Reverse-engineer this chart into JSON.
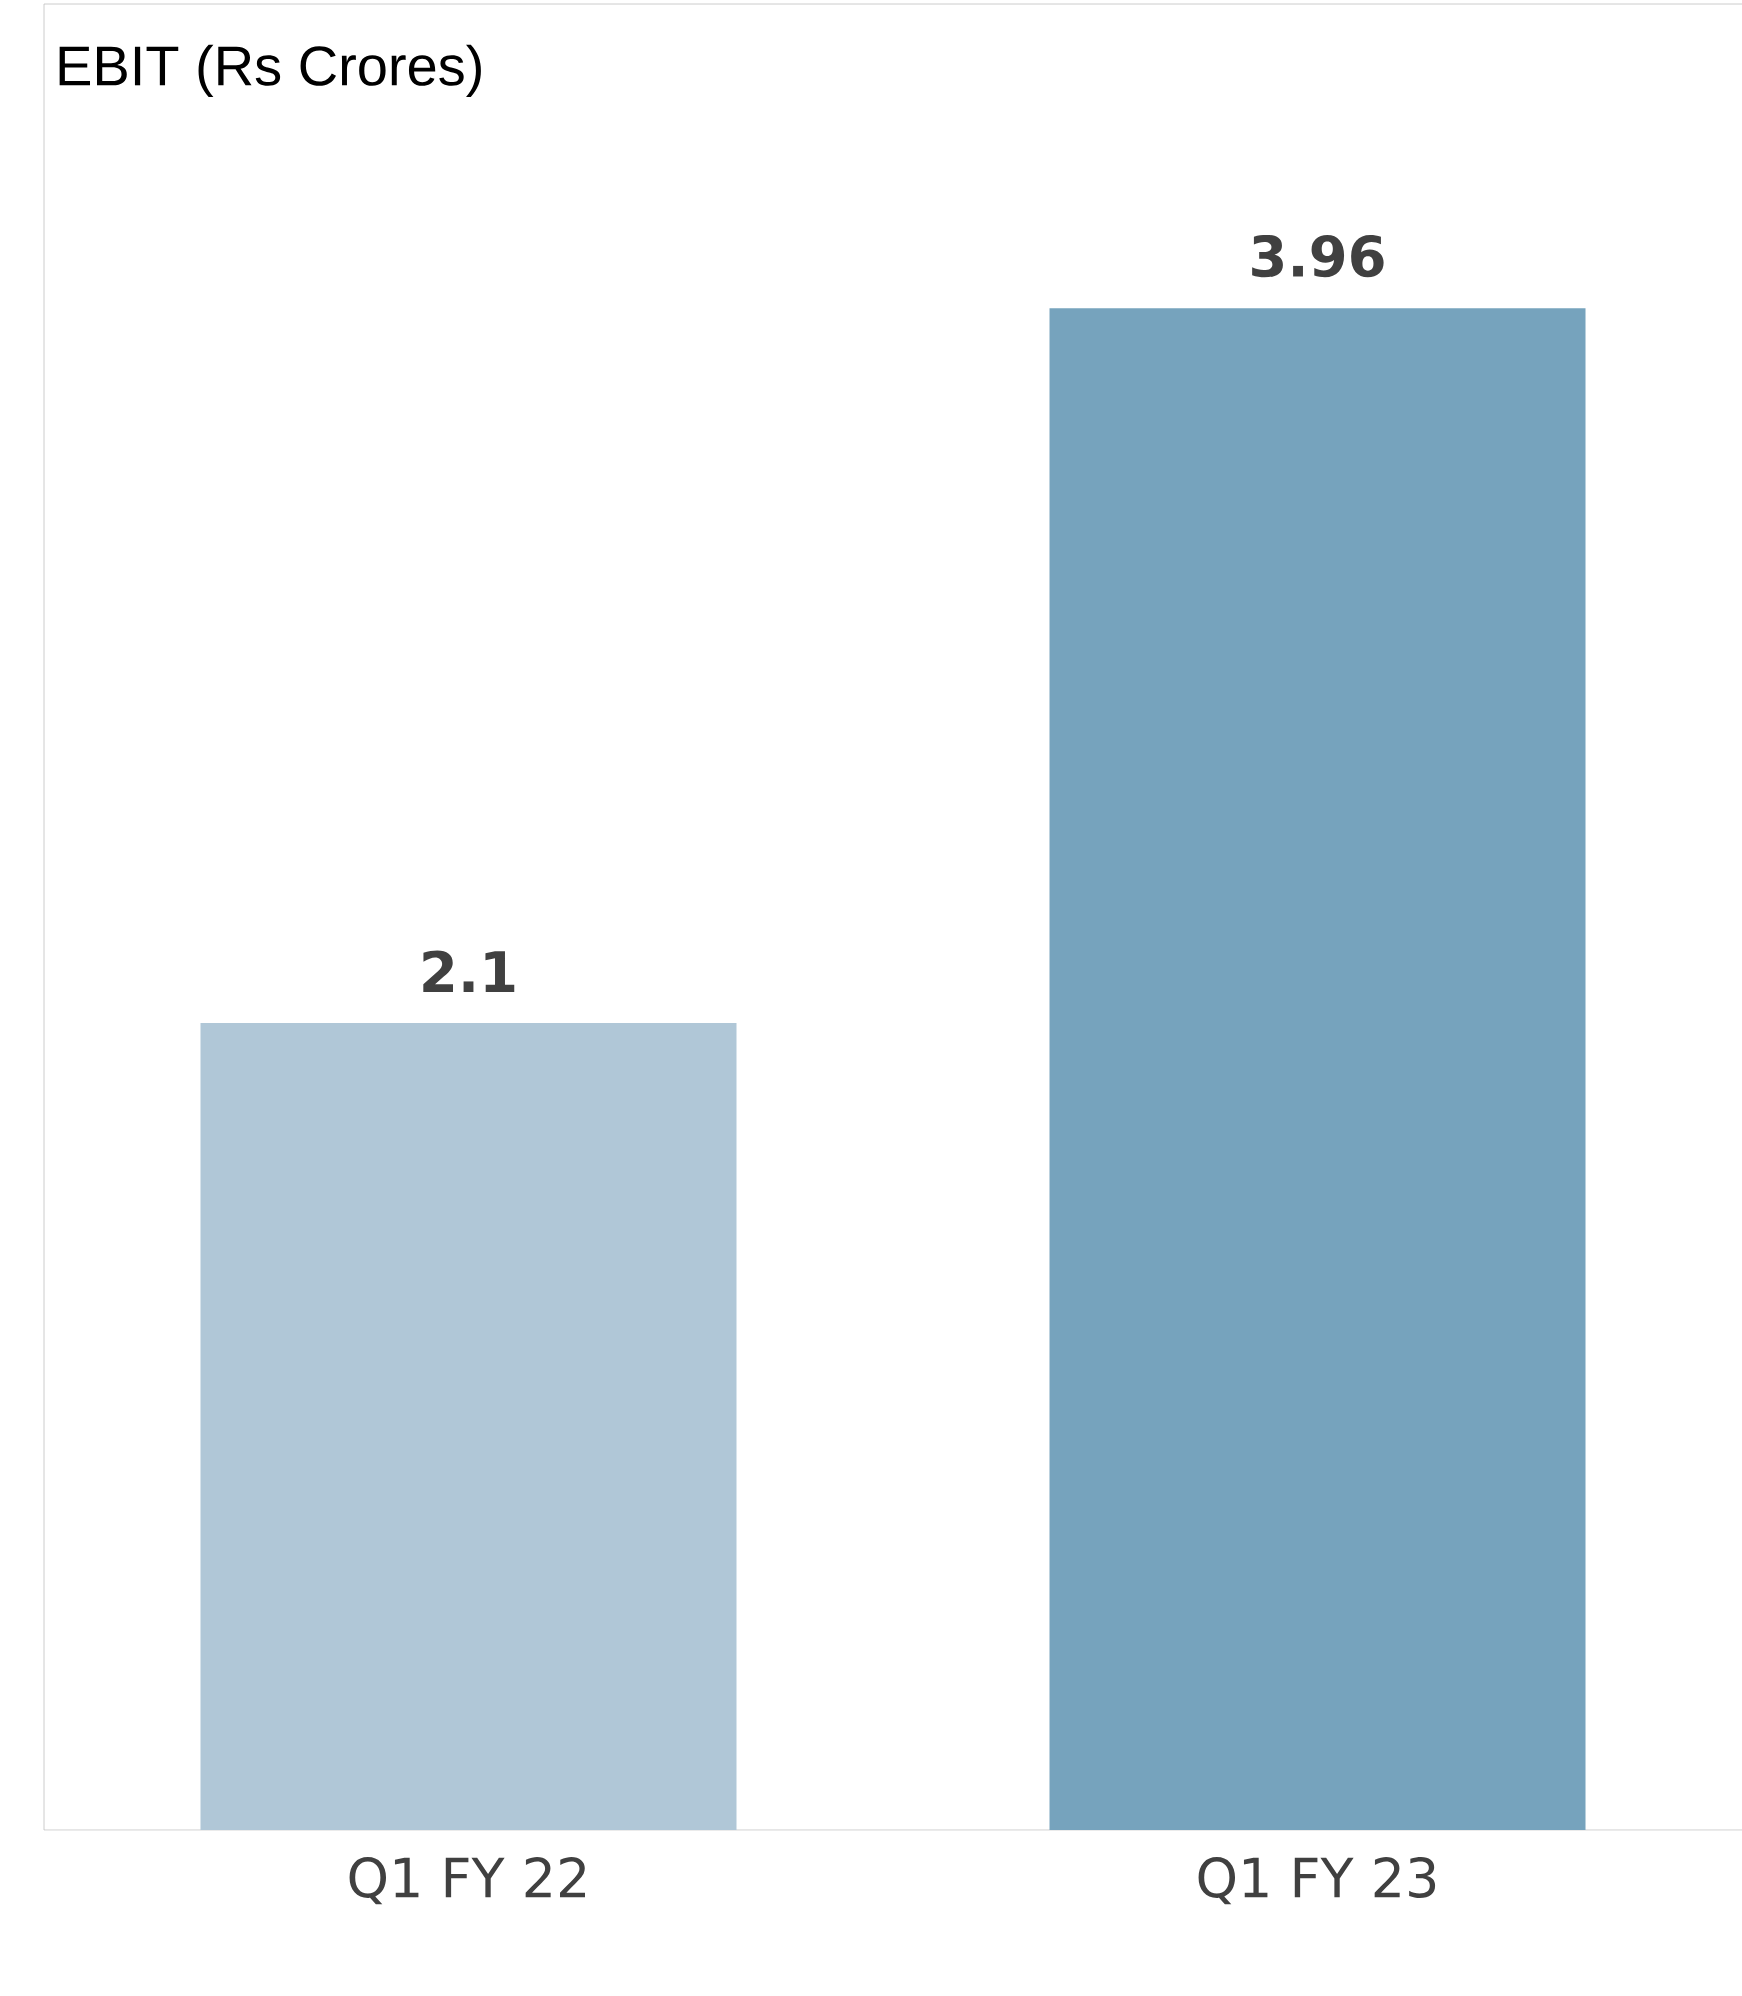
{
  "chart_data": {
    "type": "bar",
    "title": "EBIT (Rs Crores)",
    "categories": [
      "Q1 FY 22",
      "Q1 FY 23"
    ],
    "values": [
      2.1,
      3.96
    ],
    "colors": [
      "#b0c7d7",
      "#76a3bd"
    ],
    "data_labels": true
  }
}
